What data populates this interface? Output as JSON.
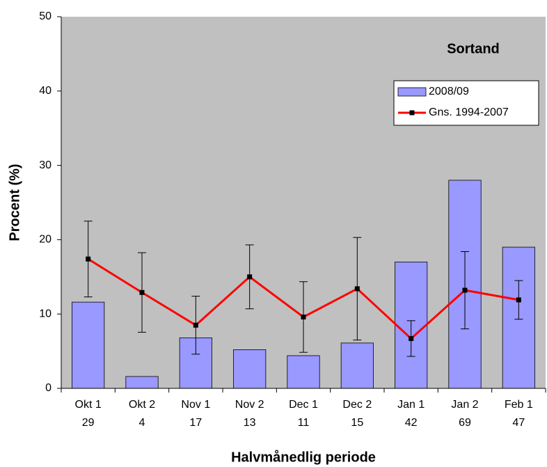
{
  "chart_data": {
    "type": "bar_line",
    "title": "Sortand",
    "x_label": "Halvmånedlig periode",
    "y_label": "Procent (%)",
    "categories": [
      "Okt 1",
      "Okt 2",
      "Nov 1",
      "Nov 2",
      "Dec 1",
      "Dec 2",
      "Jan 1",
      "Jan 2",
      "Feb 1"
    ],
    "category_counts": [
      29,
      4,
      17,
      13,
      11,
      15,
      42,
      69,
      47
    ],
    "series": [
      {
        "name": "2008/09",
        "type": "bar",
        "color": "#9999ff",
        "values": [
          11.6,
          1.6,
          6.8,
          5.2,
          4.4,
          6.1,
          17.0,
          28.0,
          19.0
        ]
      },
      {
        "name": "Gns. 1994-2007",
        "type": "line",
        "color": "#ff0000",
        "values": [
          17.4,
          12.9,
          8.5,
          15.0,
          9.6,
          13.4,
          6.7,
          13.2,
          11.9
        ],
        "errors": [
          5.1,
          5.35,
          3.9,
          4.3,
          4.75,
          6.9,
          2.4,
          5.2,
          2.6
        ]
      }
    ],
    "ylim": [
      0,
      50
    ],
    "yticks": [
      0,
      10,
      20,
      30,
      40,
      50
    ],
    "grid": false,
    "legend": "upper right",
    "plot_background": "#c0c0c0"
  }
}
